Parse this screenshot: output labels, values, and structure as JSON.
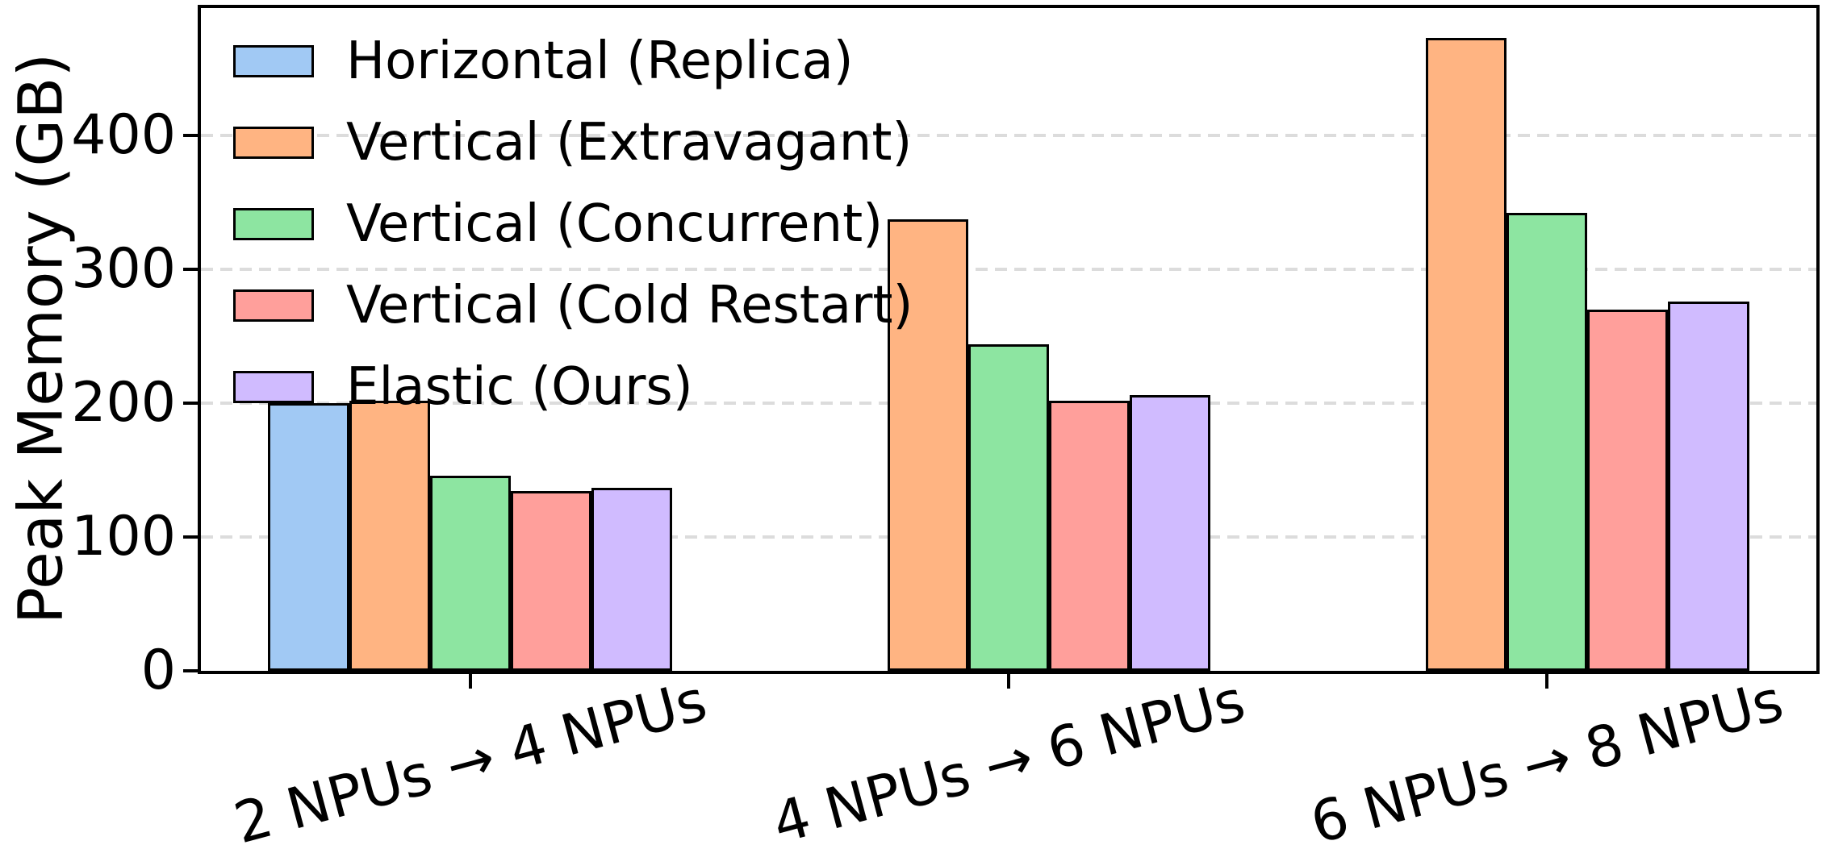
{
  "figure": {
    "background": "#ffffff"
  },
  "chart_data": {
    "type": "bar",
    "title": "",
    "xlabel": "",
    "ylabel": "Peak Memory (GB)",
    "categories": [
      "2 NPUs → 4 NPUs",
      "4 NPUs → 6 NPUs",
      "6 NPUs → 8 NPUs"
    ],
    "series": [
      {
        "name": "Horizontal (Replica)",
        "color": "#a1c9f4",
        "values": [
          200,
          null,
          null
        ]
      },
      {
        "name": "Vertical (Extravagant)",
        "color": "#ffb482",
        "values": [
          202,
          337,
          473
        ]
      },
      {
        "name": "Vertical (Concurrent)",
        "color": "#8de5a1",
        "values": [
          146,
          244,
          342
        ]
      },
      {
        "name": "Vertical (Cold Restart)",
        "color": "#ff9f9b",
        "values": [
          134,
          202,
          270
        ]
      },
      {
        "name": "Elastic (Ours)",
        "color": "#d0bbff",
        "values": [
          137,
          206,
          276
        ]
      }
    ],
    "yticks": [
      0,
      100,
      200,
      300,
      400
    ],
    "ylim": [
      0,
      495
    ],
    "bar_edge_color": "#000000",
    "grid": {
      "axis": "y",
      "style": "dashed",
      "color": "#dcdcdc"
    },
    "legend": {
      "position": "upper-left",
      "frame": false
    }
  }
}
